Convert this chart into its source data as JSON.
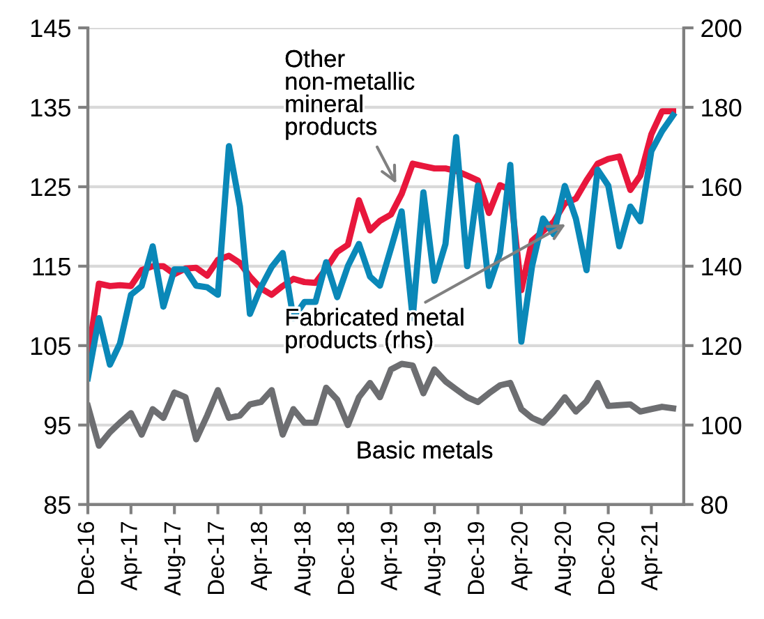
{
  "chart_data": {
    "type": "line",
    "x": [
      "2016-12",
      "2017-01",
      "2017-02",
      "2017-03",
      "2017-04",
      "2017-05",
      "2017-06",
      "2017-07",
      "2017-08",
      "2017-09",
      "2017-10",
      "2017-11",
      "2017-12",
      "2018-01",
      "2018-02",
      "2018-03",
      "2018-04",
      "2018-05",
      "2018-06",
      "2018-07",
      "2018-08",
      "2018-09",
      "2018-10",
      "2018-11",
      "2018-12",
      "2019-01",
      "2019-02",
      "2019-03",
      "2019-04",
      "2019-05",
      "2019-06",
      "2019-07",
      "2019-08",
      "2019-09",
      "2019-10",
      "2019-11",
      "2019-12",
      "2020-01",
      "2020-02",
      "2020-03",
      "2020-04",
      "2020-05",
      "2020-06",
      "2020-07",
      "2020-08",
      "2020-09",
      "2020-10",
      "2020-11",
      "2020-12",
      "2021-01",
      "2021-02",
      "2021-03",
      "2021-04",
      "2021-05",
      "2021-06"
    ],
    "series": [
      {
        "name": "Other non-metallic mineral products",
        "color": "#e8173c",
        "values": [
          103.5,
          112.8,
          112.5,
          112.6,
          112.5,
          114.5,
          115,
          115,
          114,
          114.7,
          114.8,
          113.8,
          115.8,
          116.3,
          115.4,
          113.7,
          112.2,
          111.4,
          112.5,
          113.4,
          113,
          112.9,
          114.7,
          116.8,
          117.7,
          123.3,
          119.5,
          120.7,
          121.5,
          124.1,
          127.9,
          127.6,
          127.3,
          127.3,
          127,
          126.4,
          125.8,
          121.7,
          125.2,
          124.6,
          112,
          118.2,
          119.4,
          120.6,
          122.9,
          123.5,
          125.8,
          127.9,
          128.5,
          128.8,
          124.6,
          126.4,
          131.6,
          134.5,
          134.5
        ]
      },
      {
        "name": "Fabricated metal products (rhs)",
        "color": "#0a88b8",
        "axis": "y2",
        "values": [
          111.8,
          126.9,
          115.2,
          120.5,
          132.8,
          135,
          145,
          129.8,
          139.2,
          139.2,
          135.1,
          134.7,
          132.8,
          170.2,
          155,
          128,
          134.7,
          139.8,
          143.3,
          126.9,
          131,
          131,
          141,
          132.2,
          140,
          145.6,
          137.4,
          135.1,
          144.5,
          153.8,
          126.9,
          158.6,
          136.3,
          145.6,
          172.5,
          140,
          160.3,
          135,
          143.3,
          165.5,
          121,
          140,
          152,
          148,
          160.2,
          152,
          139,
          164.3,
          160.3,
          145,
          155,
          151.3,
          169,
          174,
          178
        ]
      },
      {
        "name": "Basic metals",
        "color": "#6d6e71",
        "values": [
          97.4,
          92.4,
          94.1,
          95.3,
          96.5,
          93.8,
          97,
          95.9,
          99.1,
          98.5,
          93.2,
          96.2,
          99.4,
          95.9,
          96.2,
          97.6,
          97.9,
          99.4,
          93.8,
          97,
          95.3,
          95.3,
          99.7,
          98.2,
          95,
          98.5,
          100.3,
          98.5,
          102,
          102.7,
          102.5,
          99,
          102,
          100.5,
          99.5,
          98.5,
          97.9,
          99,
          100,
          100.3,
          97,
          95.9,
          95.3,
          96.7,
          98.5,
          96.7,
          98,
          100.3,
          97.4,
          97.5,
          97.6,
          96.7,
          97,
          97.3,
          97.1
        ]
      }
    ],
    "xlim": [
      "2016-12",
      "2021-07"
    ],
    "xticks": [
      {
        "value": "2016-12",
        "label": "Dec-16"
      },
      {
        "value": "2017-04",
        "label": "Apr-17"
      },
      {
        "value": "2017-08",
        "label": "Aug-17"
      },
      {
        "value": "2017-12",
        "label": "Dec-17"
      },
      {
        "value": "2018-04",
        "label": "Apr-18"
      },
      {
        "value": "2018-08",
        "label": "Aug-18"
      },
      {
        "value": "2018-12",
        "label": "Dec-18"
      },
      {
        "value": "2019-04",
        "label": "Apr-19"
      },
      {
        "value": "2019-08",
        "label": "Aug-19"
      },
      {
        "value": "2019-12",
        "label": "Dec-19"
      },
      {
        "value": "2020-04",
        "label": "Apr-20"
      },
      {
        "value": "2020-08",
        "label": "Aug-20"
      },
      {
        "value": "2020-12",
        "label": "Dec-20"
      },
      {
        "value": "2021-04",
        "label": "Apr-21"
      }
    ],
    "ylim": [
      85,
      145
    ],
    "yticks": [
      85,
      95,
      105,
      115,
      125,
      135,
      145
    ],
    "y2lim": [
      80,
      200
    ],
    "y2ticks": [
      80,
      100,
      120,
      140,
      160,
      180,
      200
    ],
    "grid": "y",
    "legend": false,
    "marker": "none",
    "line_style": "solid"
  }
}
